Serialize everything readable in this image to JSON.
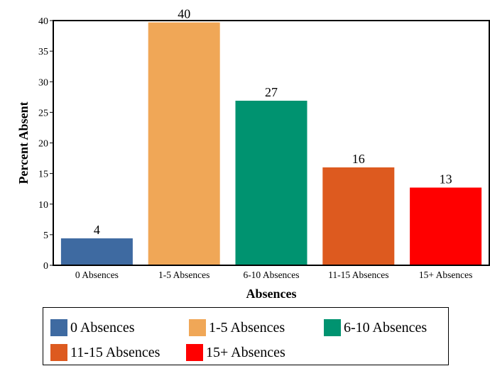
{
  "chart_data": {
    "type": "bar",
    "categories": [
      "0 Absences",
      "1-5 Absences",
      "6-10 Absences",
      "11-15 Absences",
      "15+ Absences"
    ],
    "values": [
      4.4,
      39.7,
      26.9,
      16.0,
      12.7
    ],
    "data_labels": [
      "4",
      "40",
      "27",
      "16",
      "13"
    ],
    "colors": [
      "#3e6aa1",
      "#f0a757",
      "#009370",
      "#dd5a1f",
      "#ff0000"
    ],
    "xlabel": "Absences",
    "ylabel": "Percent Absent",
    "ylim": [
      0,
      40
    ],
    "yticks": [
      0,
      5,
      10,
      15,
      20,
      25,
      30,
      35,
      40
    ],
    "grid": false,
    "legend": {
      "placement": "bottom",
      "entries": [
        "0 Absences",
        "1-5 Absences",
        "6-10 Absences",
        "11-15 Absences",
        "15+ Absences"
      ]
    }
  }
}
